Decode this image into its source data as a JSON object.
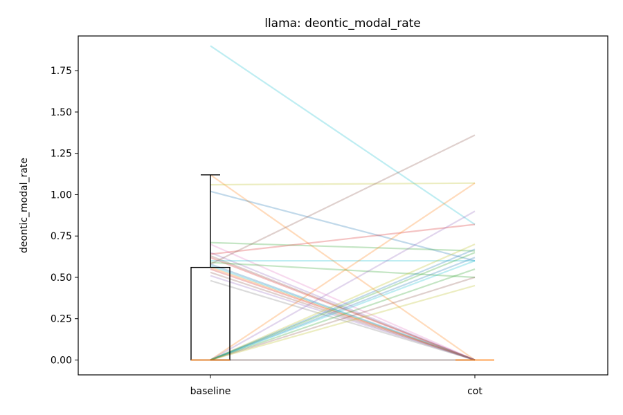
{
  "chart_data": {
    "type": "line",
    "title": "llama: deontic_modal_rate",
    "xlabel": "",
    "ylabel": "deontic_modal_rate",
    "categories": [
      "baseline",
      "cot"
    ],
    "ylim": [
      -0.09,
      1.96
    ],
    "yticks": [
      "0.00",
      "0.25",
      "0.50",
      "0.75",
      "1.00",
      "1.25",
      "1.50",
      "1.75"
    ],
    "grid": false,
    "boxplot": {
      "category": "baseline",
      "q1": 0.0,
      "median": 0.0,
      "q3": 0.56,
      "whisker_low": 0.0,
      "whisker_high": 1.12,
      "cot_median": 0.0
    },
    "series": [
      {
        "values": [
          1.9,
          0.82
        ],
        "color": "#17becf"
      },
      {
        "values": [
          1.12,
          0.0
        ],
        "color": "#ff7f0e"
      },
      {
        "values": [
          1.06,
          1.07
        ],
        "color": "#bcbd22"
      },
      {
        "values": [
          1.02,
          0.6
        ],
        "color": "#1f77b4"
      },
      {
        "values": [
          0.71,
          0.66
        ],
        "color": "#2ca02c"
      },
      {
        "values": [
          0.7,
          0.0
        ],
        "color": "#e377c2"
      },
      {
        "values": [
          0.65,
          0.0
        ],
        "color": "#9467bd"
      },
      {
        "values": [
          0.64,
          0.82
        ],
        "color": "#d62728"
      },
      {
        "values": [
          0.63,
          0.0
        ],
        "color": "#8c564b"
      },
      {
        "values": [
          0.62,
          0.0
        ],
        "color": "#d62728"
      },
      {
        "values": [
          0.6,
          0.6
        ],
        "color": "#17becf"
      },
      {
        "values": [
          0.59,
          0.5
        ],
        "color": "#2ca02c"
      },
      {
        "values": [
          0.58,
          0.0
        ],
        "color": "#1f77b4"
      },
      {
        "values": [
          0.57,
          0.0
        ],
        "color": "#17becf"
      },
      {
        "values": [
          0.56,
          0.0
        ],
        "color": "#ff7f0e"
      },
      {
        "values": [
          0.55,
          0.0
        ],
        "color": "#d62728"
      },
      {
        "values": [
          0.53,
          0.0
        ],
        "color": "#8c564b"
      },
      {
        "values": [
          0.51,
          0.0
        ],
        "color": "#9467bd"
      },
      {
        "values": [
          0.48,
          0.0
        ],
        "color": "#7f7f7f"
      },
      {
        "values": [
          0.58,
          1.36
        ],
        "color": "#8c564b"
      },
      {
        "values": [
          0.0,
          1.07
        ],
        "color": "#ff7f0e"
      },
      {
        "values": [
          0.0,
          0.9
        ],
        "color": "#9467bd"
      },
      {
        "values": [
          0.0,
          0.7
        ],
        "color": "#bcbd22"
      },
      {
        "values": [
          0.0,
          0.67
        ],
        "color": "#1f77b4"
      },
      {
        "values": [
          0.0,
          0.65
        ],
        "color": "#2ca02c"
      },
      {
        "values": [
          0.0,
          0.62
        ],
        "color": "#1f77b4"
      },
      {
        "values": [
          0.0,
          0.6
        ],
        "color": "#17becf"
      },
      {
        "values": [
          0.0,
          0.55
        ],
        "color": "#2ca02c"
      },
      {
        "values": [
          0.0,
          0.5
        ],
        "color": "#8c564b"
      },
      {
        "values": [
          0.0,
          0.45
        ],
        "color": "#bcbd22"
      },
      {
        "values": [
          0.0,
          0.0
        ],
        "color": "#8c564b"
      },
      {
        "values": [
          0.0,
          0.0
        ],
        "color": "#7f7f7f"
      }
    ]
  }
}
